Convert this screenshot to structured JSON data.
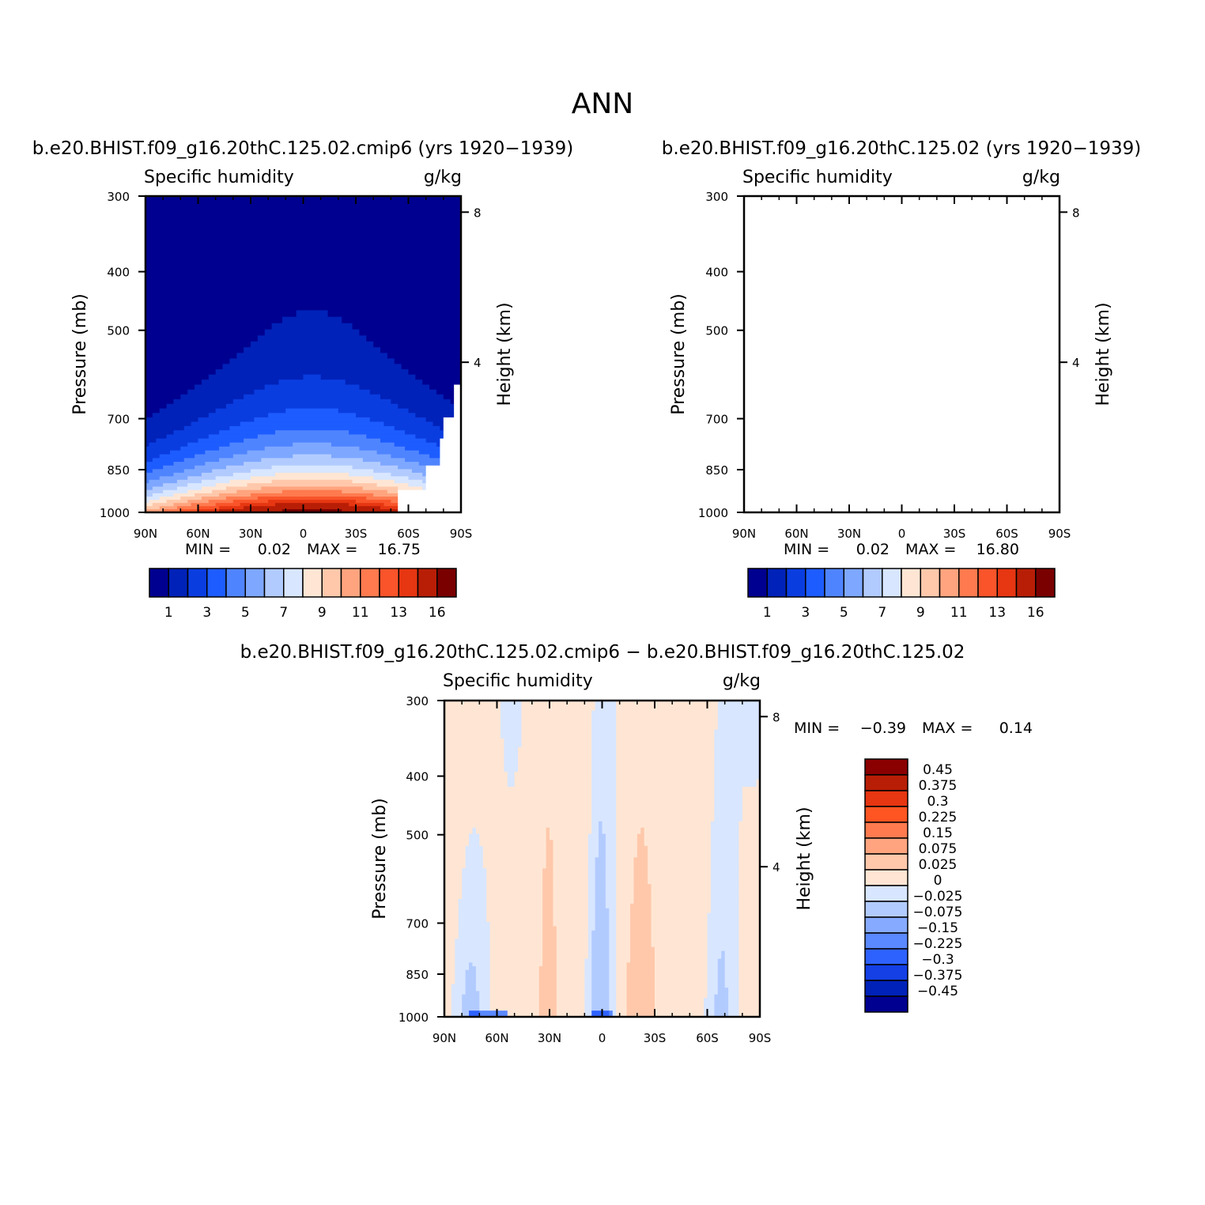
{
  "figure": {
    "title": "ANN"
  },
  "panels": [
    {
      "case_title": "b.e20.BHIST.f09_g16.20thC.125.02.cmip6 (yrs 1920−1939)",
      "variable": "Specific humidity",
      "units": "g/kg",
      "ylabel": "Pressure (mb)",
      "ylabel_right": "Height (km)",
      "min_label": "MIN =",
      "min_value": "0.02",
      "max_label": "MAX =",
      "max_value": "16.75"
    },
    {
      "case_title": "b.e20.BHIST.f09_g16.20thC.125.02 (yrs 1920−1939)",
      "variable": "Specific humidity",
      "units": "g/kg",
      "ylabel": "Pressure (mb)",
      "ylabel_right": "Height (km)",
      "min_label": "MIN =",
      "min_value": "0.02",
      "max_label": "MAX =",
      "max_value": "16.80"
    },
    {
      "case_title": "b.e20.BHIST.f09_g16.20thC.125.02.cmip6 − b.e20.BHIST.f09_g16.20thC.125.02",
      "variable": "Specific humidity",
      "units": "g/kg",
      "ylabel": "Pressure (mb)",
      "ylabel_right": "Height (km)",
      "min_label": "MIN =",
      "min_value": "−0.39",
      "max_label": "MAX =",
      "max_value": "0.14"
    }
  ],
  "chart_data": [
    {
      "type": "heatmap",
      "x_ticks": [
        "90N",
        "60N",
        "30N",
        "0",
        "30S",
        "60S",
        "90S"
      ],
      "x_values": [
        90,
        60,
        30,
        0,
        -30,
        -60,
        -90
      ],
      "y_ticks": [
        "300",
        "400",
        "500",
        "700",
        "850",
        "1000"
      ],
      "y_values": [
        300,
        400,
        500,
        700,
        850,
        1000
      ],
      "y_right_ticks": [
        "8",
        "4"
      ],
      "y_right_values": [
        8,
        4
      ],
      "colorbar_labels": [
        "1",
        "3",
        "5",
        "7",
        "9",
        "11",
        "13",
        "16"
      ],
      "colors": [
        "#000090",
        "#0022b8",
        "#0a3de0",
        "#1d5cff",
        "#4f84ff",
        "#7ea7ff",
        "#b2cbff",
        "#d8e6ff",
        "#ffe6d4",
        "#ffc8ab",
        "#ffa47e",
        "#ff7a4f",
        "#f9542a",
        "#e63612",
        "#b81e06",
        "#7a0000"
      ]
    },
    {
      "type": "heatmap",
      "x_ticks": [
        "90N",
        "60N",
        "30N",
        "0",
        "30S",
        "60S",
        "90S"
      ],
      "x_values": [
        90,
        60,
        30,
        0,
        -30,
        -60,
        -90
      ],
      "y_ticks": [
        "300",
        "400",
        "500",
        "700",
        "850",
        "1000"
      ],
      "y_values": [
        300,
        400,
        500,
        700,
        850,
        1000
      ],
      "y_right_ticks": [
        "8",
        "4"
      ],
      "y_right_values": [
        8,
        4
      ],
      "colorbar_labels": [
        "1",
        "3",
        "5",
        "7",
        "9",
        "11",
        "13",
        "16"
      ],
      "colors": [
        "#000090",
        "#0022b8",
        "#0a3de0",
        "#1d5cff",
        "#4f84ff",
        "#7ea7ff",
        "#b2cbff",
        "#d8e6ff",
        "#ffe6d4",
        "#ffc8ab",
        "#ffa47e",
        "#ff7a4f",
        "#f9542a",
        "#e63612",
        "#b81e06",
        "#7a0000"
      ]
    },
    {
      "type": "heatmap",
      "x_ticks": [
        "90N",
        "60N",
        "30N",
        "0",
        "30S",
        "60S",
        "90S"
      ],
      "x_values": [
        90,
        60,
        30,
        0,
        -30,
        -60,
        -90
      ],
      "y_ticks": [
        "300",
        "400",
        "500",
        "700",
        "850",
        "1000"
      ],
      "y_values": [
        300,
        400,
        500,
        700,
        850,
        1000
      ],
      "y_right_ticks": [
        "8",
        "4"
      ],
      "y_right_values": [
        8,
        4
      ],
      "colorbar_labels": [
        "0.45",
        "0.375",
        "0.3",
        "0.225",
        "0.15",
        "0.075",
        "0.025",
        "0",
        "−0.025",
        "−0.075",
        "−0.15",
        "−0.225",
        "−0.3",
        "−0.375",
        "−0.45"
      ],
      "colors": [
        "#8a0000",
        "#b81e06",
        "#e63612",
        "#ff5522",
        "#ff7a4f",
        "#ffa47e",
        "#ffc8ab",
        "#ffe6d4",
        "#d8e6ff",
        "#b2cbff",
        "#86aaff",
        "#5a88ff",
        "#2e62ff",
        "#1440e6",
        "#0022b8",
        "#000090"
      ]
    }
  ]
}
